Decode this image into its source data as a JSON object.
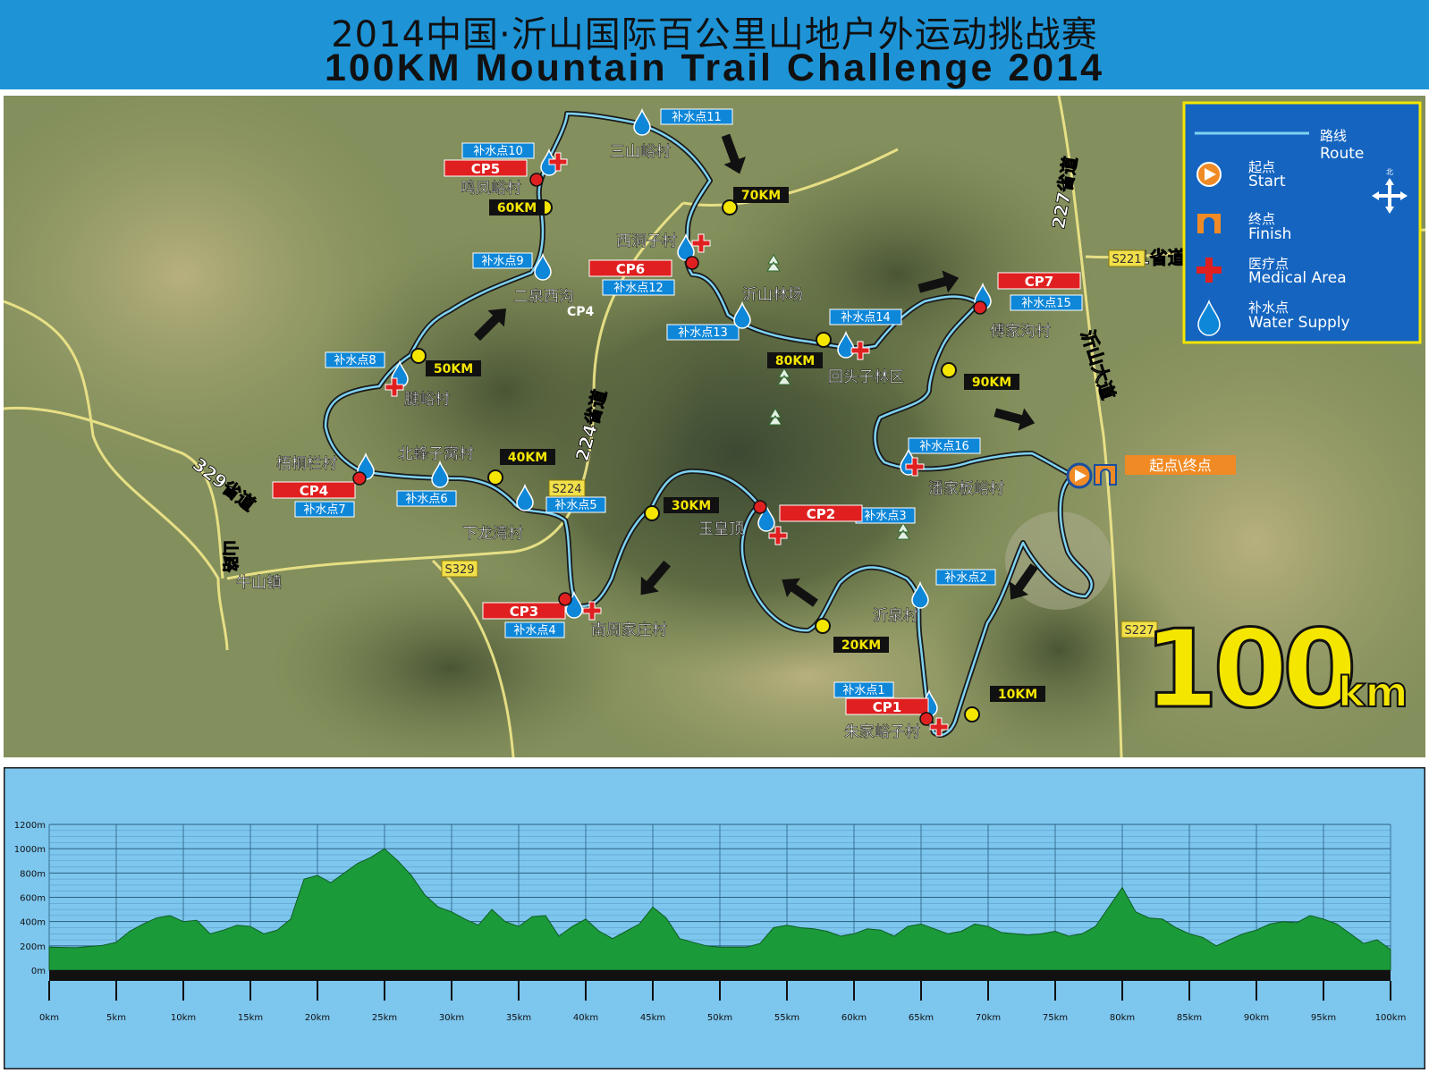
{
  "header": {
    "title_cn": "2014中国·沂山国际百公里山地户外运动挑战赛",
    "title_en": "100KM Mountain Trail Challenge 2014"
  },
  "legend": {
    "route_cn": "路线",
    "route_en": "Route",
    "start_cn": "起点",
    "start_en": "Start",
    "finish_cn": "终点",
    "finish_en": "Finish",
    "medical_cn": "医疗点",
    "medical_en": "Medical  Area",
    "water_cn": "补水点",
    "water_en": "Water  Supply",
    "compass_n": "北"
  },
  "big_distance": {
    "number": "100",
    "unit": "km"
  },
  "start_finish_label": "起点\\终点",
  "checkpoints": [
    "CP1",
    "CP2",
    "CP3",
    "CP4",
    "CP5",
    "CP6",
    "CP7"
  ],
  "cp4_small": "CP4",
  "water_points": [
    "补水点1",
    "补水点2",
    "补水点3",
    "补水点4",
    "补水点5",
    "补水点6",
    "补水点7",
    "补水点8",
    "补水点9",
    "补水点10",
    "补水点11",
    "补水点12",
    "补水点13",
    "补水点14",
    "补水点15",
    "补水点16"
  ],
  "km_markers": [
    "10KM",
    "20KM",
    "30KM",
    "40KM",
    "50KM",
    "60KM",
    "70KM",
    "80KM",
    "90KM"
  ],
  "places": [
    "朱家峪子村",
    "沂泉村",
    "玉皇顶",
    "南周家庄村",
    "下龙湾村",
    "北蜂子窝村",
    "梧桐栏村",
    "牛山镇",
    "腱峪村",
    "二泉西沟",
    "鸣凤峪村",
    "三山峪村",
    "西洞子村",
    "沂山林场",
    "回头子林区",
    "傅家沟村",
    "潘家板峪村"
  ],
  "roads": {
    "r329": "329省道",
    "r227": "227省道",
    "r221": "221省道",
    "r224": "224省道",
    "yishan_road": "沂山大道",
    "shanlu": "山路",
    "s221": "S221",
    "s224": "S224",
    "s329": "S329",
    "s227": "S227"
  },
  "colors": {
    "header_bg": "#1e94d7",
    "route": "#7fd3f2",
    "legend_bg": "#1565c0",
    "cp_red": "#e02020",
    "water_blue": "#0e87d9",
    "km_yellow": "#f5e600",
    "start_orange": "#f08a24",
    "profile_bg": "#7dc6ee",
    "profile_fill": "#1b9a3a"
  },
  "chart_data": {
    "type": "area",
    "title": "",
    "xlabel": "",
    "ylabel": "",
    "x_ticks": [
      "0km",
      "5km",
      "10km",
      "15km",
      "20km",
      "25km",
      "30km",
      "35km",
      "40km",
      "45km",
      "50km",
      "55km",
      "60km",
      "65km",
      "70km",
      "75km",
      "80km",
      "85km",
      "90km",
      "95km",
      "100km"
    ],
    "y_ticks": [
      "0m",
      "200m",
      "400m",
      "600m",
      "800m",
      "1000m",
      "1200m"
    ],
    "xlim": [
      0,
      100
    ],
    "ylim": [
      0,
      1200
    ],
    "grid": true,
    "series": [
      {
        "x": [
          0,
          2,
          4,
          5,
          6,
          7,
          8,
          9,
          10,
          11,
          12,
          13,
          14,
          15,
          16,
          17,
          18,
          19,
          20,
          21,
          22,
          23,
          24,
          25,
          26,
          27,
          28,
          29,
          30,
          31,
          32,
          33,
          34,
          35,
          36,
          37,
          38,
          39,
          40,
          41,
          42,
          43,
          44,
          45,
          46,
          47,
          48,
          49,
          50,
          51,
          52,
          53,
          54,
          55,
          56,
          57,
          58,
          59,
          60,
          61,
          62,
          63,
          64,
          65,
          66,
          67,
          68,
          69,
          70,
          71,
          72,
          73,
          74,
          75,
          76,
          77,
          78,
          79,
          80,
          81,
          82,
          83,
          84,
          85,
          86,
          87,
          88,
          89,
          90,
          91,
          92,
          93,
          94,
          95,
          96,
          97,
          98,
          99,
          100
        ],
        "y": [
          190,
          185,
          205,
          230,
          320,
          380,
          430,
          450,
          400,
          410,
          300,
          330,
          370,
          360,
          300,
          330,
          420,
          750,
          780,
          720,
          800,
          880,
          930,
          1000,
          900,
          780,
          620,
          520,
          480,
          420,
          370,
          500,
          400,
          360,
          440,
          450,
          280,
          360,
          420,
          320,
          260,
          320,
          380,
          520,
          430,
          260,
          230,
          200,
          190,
          190,
          190,
          220,
          350,
          370,
          350,
          340,
          320,
          280,
          300,
          340,
          330,
          280,
          360,
          380,
          340,
          300,
          320,
          380,
          360,
          310,
          300,
          290,
          300,
          320,
          280,
          300,
          360,
          520,
          680,
          480,
          430,
          420,
          350,
          300,
          270,
          200,
          250,
          300,
          330,
          380,
          400,
          390,
          450,
          420,
          380,
          300,
          220,
          250,
          170
        ]
      }
    ]
  }
}
